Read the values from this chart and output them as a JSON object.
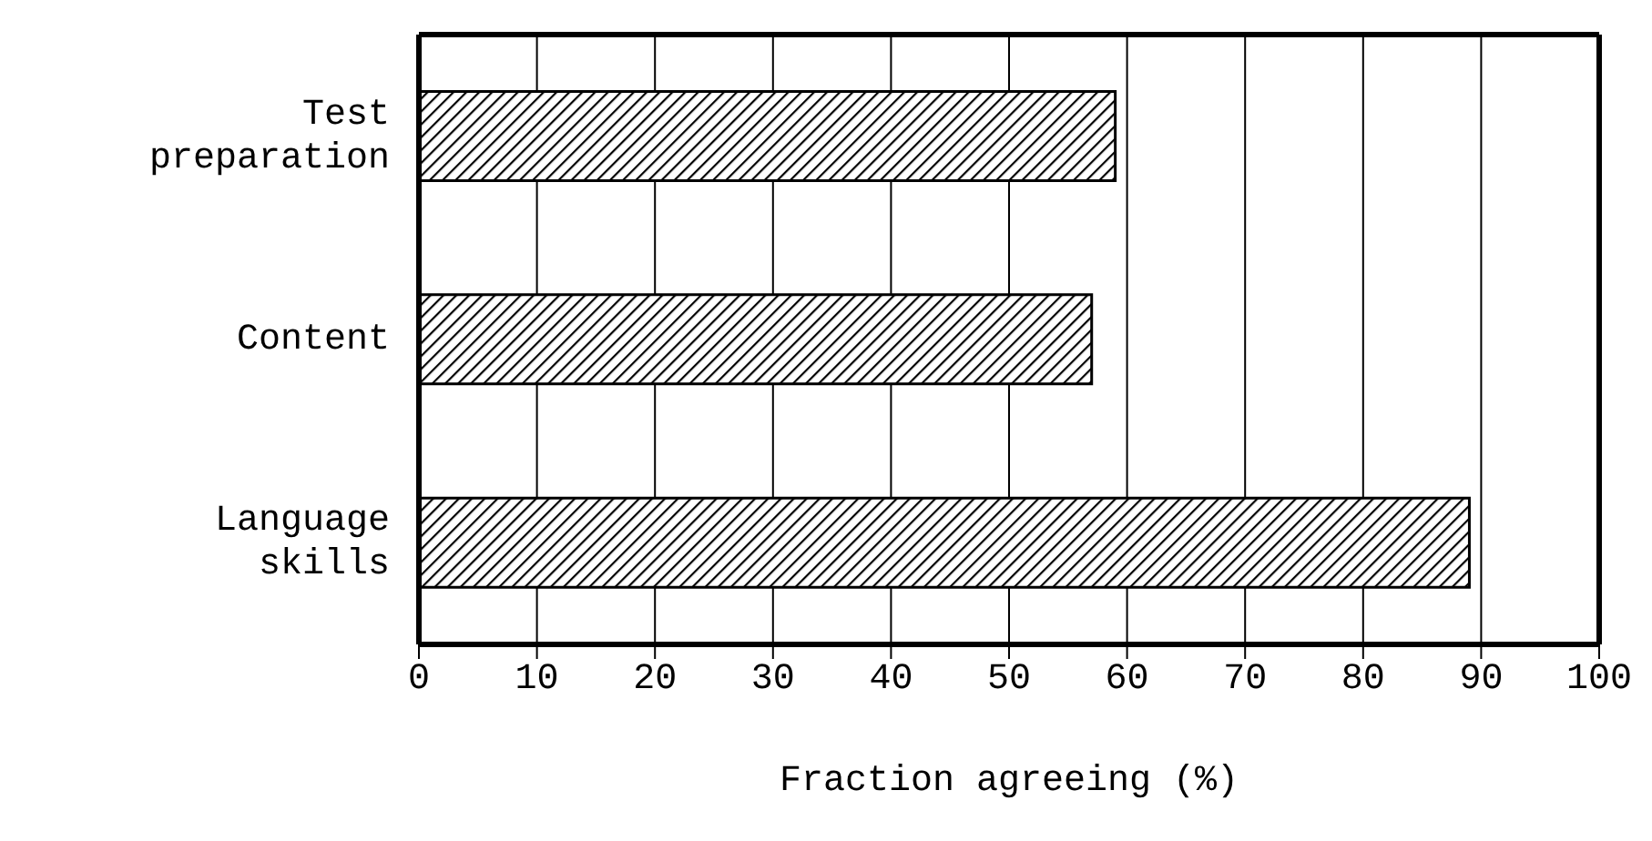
{
  "chart_data": {
    "type": "bar",
    "orientation": "horizontal",
    "xlabel": "Fraction agreeing (%)",
    "categories": [
      "Test preparation",
      "Content",
      "Language skills"
    ],
    "values": [
      59,
      57,
      89
    ],
    "color": "#000000",
    "xlim": [
      0,
      100
    ],
    "xticks": [
      0,
      10,
      20,
      30,
      40,
      50,
      60,
      70,
      80,
      90,
      100
    ],
    "grid": "x"
  }
}
